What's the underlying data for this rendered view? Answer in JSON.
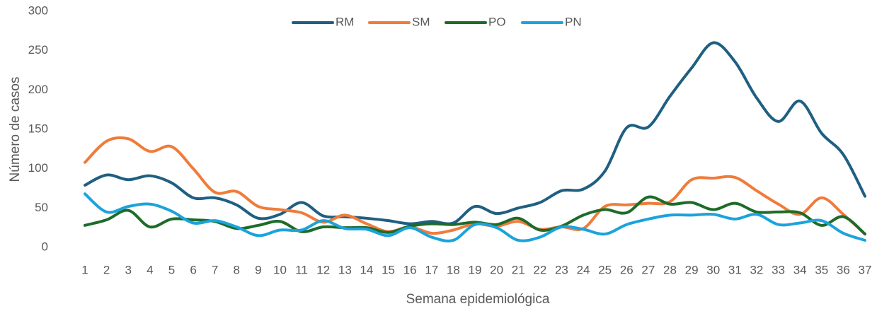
{
  "chart_data": {
    "type": "line",
    "x_label": "Semana epidemiológica",
    "y_label": "Número de casos",
    "categories": [
      "1",
      "2",
      "3",
      "4",
      "5",
      "6",
      "7",
      "8",
      "9",
      "10",
      "11",
      "12",
      "13",
      "14",
      "15",
      "16",
      "17",
      "18",
      "19",
      "20",
      "21",
      "22",
      "23",
      "24",
      "25",
      "26",
      "27",
      "28",
      "29",
      "30",
      "31",
      "32",
      "33",
      "34",
      "35",
      "36",
      "37"
    ],
    "series": [
      {
        "name": "RM",
        "color": "#1f5f82",
        "values": [
          79,
          92,
          86,
          91,
          82,
          63,
          63,
          54,
          37,
          42,
          57,
          40,
          39,
          37,
          34,
          30,
          33,
          31,
          52,
          43,
          50,
          57,
          72,
          74,
          97,
          152,
          153,
          192,
          228,
          260,
          236,
          190,
          160,
          186,
          145,
          118,
          65
        ]
      },
      {
        "name": "SM",
        "color": "#ef7c3a",
        "values": [
          108,
          135,
          138,
          122,
          128,
          100,
          70,
          71,
          52,
          48,
          44,
          32,
          41,
          30,
          20,
          26,
          18,
          22,
          30,
          27,
          33,
          23,
          26,
          24,
          52,
          54,
          56,
          58,
          86,
          88,
          89,
          72,
          55,
          42,
          63,
          42,
          17
        ]
      },
      {
        "name": "PO",
        "color": "#1e6b2a",
        "values": [
          28,
          35,
          47,
          26,
          36,
          35,
          33,
          24,
          28,
          33,
          20,
          26,
          25,
          25,
          19,
          27,
          30,
          29,
          32,
          29,
          37,
          22,
          27,
          41,
          48,
          44,
          64,
          55,
          57,
          48,
          56,
          45,
          45,
          44,
          28,
          39,
          17
        ]
      },
      {
        "name": "PN",
        "color": "#1ba3dc",
        "values": [
          68,
          45,
          52,
          55,
          46,
          31,
          34,
          26,
          15,
          22,
          22,
          34,
          24,
          23,
          15,
          25,
          13,
          9,
          29,
          25,
          9,
          13,
          26,
          23,
          17,
          29,
          36,
          41,
          41,
          42,
          36,
          42,
          29,
          31,
          34,
          18,
          9
        ]
      }
    ],
    "ylim": [
      0,
      300
    ],
    "yticks": [
      0,
      50,
      100,
      150,
      200,
      250,
      300
    ],
    "grid": false,
    "legend": "top"
  }
}
